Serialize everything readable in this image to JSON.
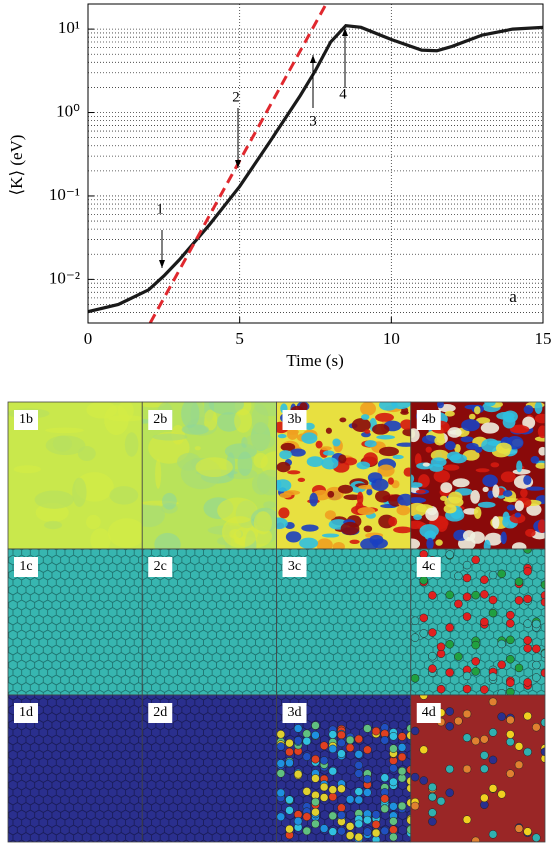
{
  "chart_data": {
    "type": "line",
    "xlabel": "Time (s)",
    "ylabel": "⟨K⟩ (eV)",
    "panel_label": "a",
    "log_y": true,
    "grid": true,
    "xlim": [
      0,
      15
    ],
    "xticks": [
      0,
      5,
      10,
      15
    ],
    "ylim": [
      0.003,
      20
    ],
    "yticks": [
      {
        "value": 0.01,
        "label": "10⁻²"
      },
      {
        "value": 0.1,
        "label": "10⁻¹"
      },
      {
        "value": 1,
        "label": "10⁰"
      },
      {
        "value": 10,
        "label": "10¹"
      }
    ],
    "series": [
      {
        "color": "#1a1a1a",
        "x": [
          0,
          1,
          2,
          2.5,
          3,
          4,
          5,
          6,
          7,
          7.5,
          8,
          8.5,
          9,
          10,
          11,
          11.5,
          12,
          13,
          14,
          15
        ],
        "values": [
          0.0041,
          0.005,
          0.0075,
          0.011,
          0.017,
          0.045,
          0.13,
          0.45,
          1.6,
          3.2,
          7,
          11,
          10.5,
          7.5,
          5.6,
          5.5,
          6.2,
          8.5,
          10,
          10.5
        ]
      },
      {
        "color": "#e0282e",
        "dashed": true,
        "x": [
          2.05,
          7.85
        ],
        "values": [
          0.003,
          20
        ]
      }
    ],
    "annotations": [
      "1",
      "2",
      "3",
      "4"
    ]
  },
  "panels": [
    "1b",
    "2b",
    "3b",
    "4b",
    "1c",
    "2c",
    "3c",
    "4c",
    "1d",
    "2d",
    "3d",
    "4d"
  ]
}
